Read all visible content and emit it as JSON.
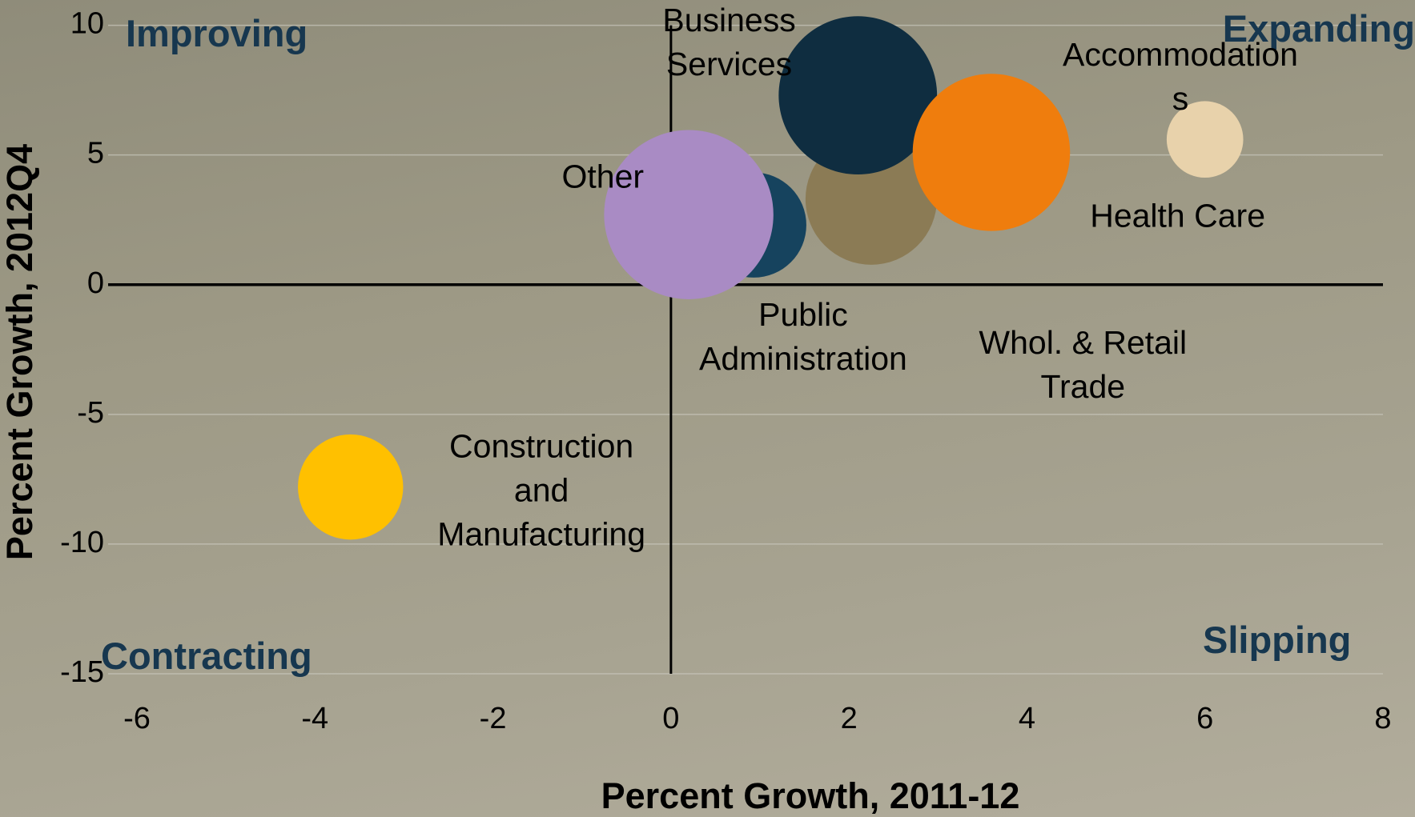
{
  "chart_data": {
    "type": "bubble",
    "xlabel": "Percent Growth, 2011-12",
    "ylabel": "Percent Growth, 2012Q4",
    "annotations": [
      "Improving",
      "Expanding",
      "Contracting",
      "Slipping"
    ],
    "xlim": [
      -6,
      8
    ],
    "xticks": [
      -6,
      -4,
      -2,
      0,
      2,
      4,
      6,
      8
    ],
    "ylim": [
      -15,
      10
    ],
    "yticks": [
      -15,
      -10,
      -5,
      0,
      5,
      10
    ],
    "grid": true,
    "series": [
      {
        "name": "Whol. & Retail\nTrade",
        "color": "#8b7b55",
        "x": [
          2.25
        ],
        "values": [
          3.3
        ],
        "sizes": [
          53
        ]
      },
      {
        "name": "Business\nServices",
        "color": "#0f2d40",
        "x": [
          2.1
        ],
        "values": [
          7.3
        ],
        "sizes": [
          77
        ]
      },
      {
        "name": "Health Care",
        "color": "#ef7d0d",
        "x": [
          3.6
        ],
        "values": [
          5.1
        ],
        "sizes": [
          76
        ]
      },
      {
        "name": "Accommodation\ns",
        "color": "#e8d2ab",
        "x": [
          6.0
        ],
        "values": [
          5.6
        ],
        "sizes": [
          18
        ]
      },
      {
        "name": "Public\nAdministration",
        "color": "#16435e",
        "x": [
          0.93
        ],
        "values": [
          2.3
        ],
        "sizes": [
          34
        ]
      },
      {
        "name": "Other",
        "color": "#a98bc4",
        "x": [
          0.2
        ],
        "values": [
          2.7
        ],
        "sizes": [
          88
        ]
      },
      {
        "name": "Construction\nand\nManufacturing",
        "color": "#ffc000",
        "x": [
          -3.6
        ],
        "values": [
          -7.8
        ],
        "sizes": [
          34
        ]
      }
    ]
  }
}
